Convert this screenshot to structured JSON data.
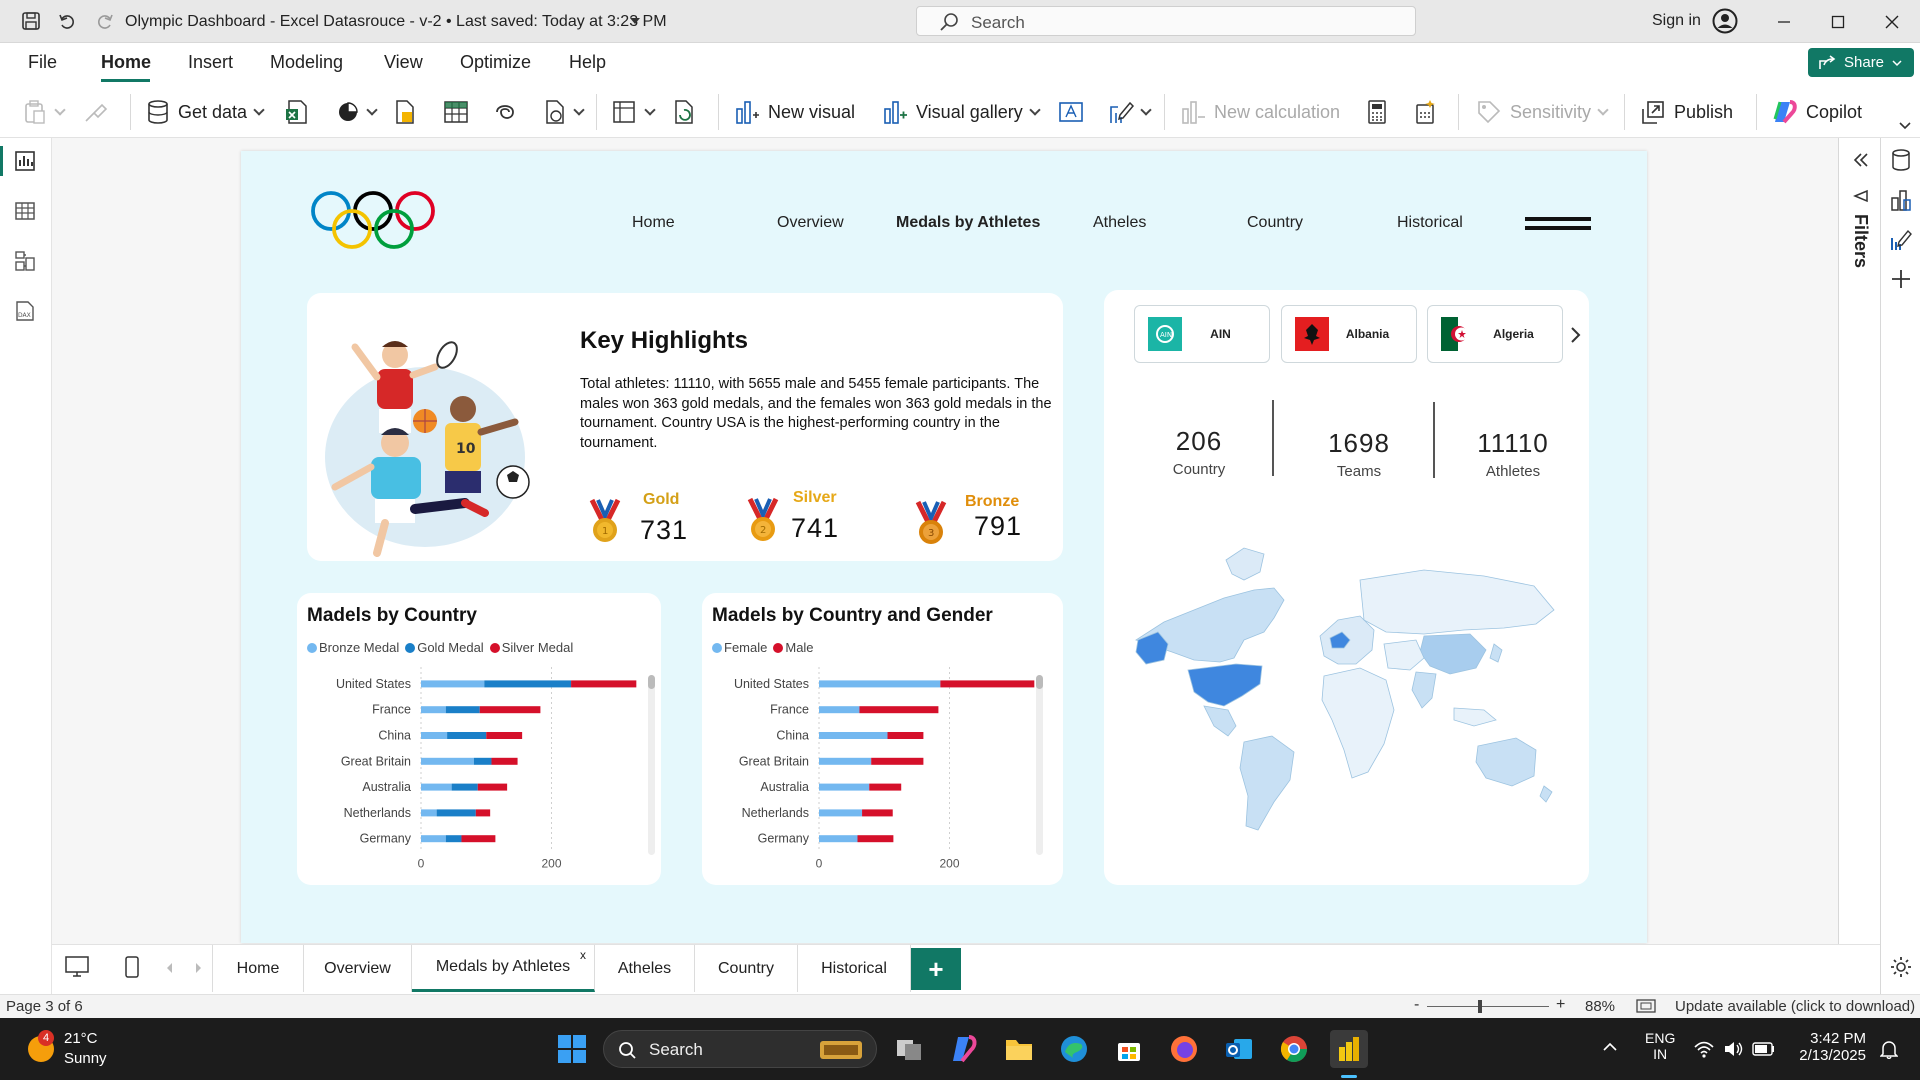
{
  "app": {
    "title": "Olympic Dashboard - Excel Datasrouce - v-2  •  Last saved: Today at 3:23 PM",
    "search_placeholder": "Search",
    "sign_in": "Sign in"
  },
  "ribbon_tabs": [
    "File",
    "Home",
    "Insert",
    "Modeling",
    "View",
    "Optimize",
    "Help"
  ],
  "share_label": "Share",
  "ribbon": {
    "get_data": "Get data",
    "new_visual": "New visual",
    "visual_gallery": "Visual gallery",
    "new_calculation": "New calculation",
    "sensitivity": "Sensitivity",
    "publish": "Publish",
    "copilot": "Copilot"
  },
  "filters_label": "Filters",
  "report": {
    "nav": [
      "Home",
      "Overview",
      "Medals by Athletes",
      "Atheles",
      "Country",
      "Historical"
    ],
    "active_nav": "Medals by Athletes",
    "highlights": {
      "title": "Key Highlights",
      "text": "Total athletes: 11110, with 5655 male and 5455 female participants. The males won 363 gold medals, and the females won 363 gold medals in the tournament. Country USA is the highest-performing country in the tournament.",
      "medals": [
        {
          "label": "Gold",
          "value": "731",
          "color": "#d4a017"
        },
        {
          "label": "Silver",
          "value": "741",
          "color": "#e6a817"
        },
        {
          "label": "Bronze",
          "value": "791",
          "color": "#e08e0b"
        }
      ]
    },
    "country_slicer": [
      "AIN",
      "Albania",
      "Algeria"
    ],
    "stats": [
      {
        "value": "206",
        "label": "Country"
      },
      {
        "value": "1698",
        "label": "Teams"
      },
      {
        "value": "11110",
        "label": "Athletes"
      }
    ]
  },
  "chart_data": [
    {
      "type": "bar",
      "orientation": "horizontal",
      "stacked": true,
      "title": "Madels by Country",
      "categories": [
        "United States",
        "France",
        "China",
        "Great Britain",
        "Australia",
        "Netherlands",
        "Germany"
      ],
      "series": [
        {
          "name": "Bronze Medal",
          "color": "#73b8f0",
          "values": [
            97,
            38,
            40,
            81,
            47,
            24,
            38
          ]
        },
        {
          "name": "Gold Medal",
          "color": "#1a7fc8",
          "values": [
            133,
            52,
            60,
            27,
            40,
            60,
            24
          ]
        },
        {
          "name": "Silver Medal",
          "color": "#d5102a",
          "values": [
            100,
            93,
            55,
            40,
            45,
            22,
            52
          ]
        }
      ],
      "xlim": [
        0,
        400
      ],
      "xticks": [
        0,
        200,
        400
      ]
    },
    {
      "type": "bar",
      "orientation": "horizontal",
      "stacked": true,
      "title": "Madels by Country and Gender",
      "categories": [
        "United States",
        "France",
        "China",
        "Great Britain",
        "Australia",
        "Netherlands",
        "Germany"
      ],
      "series": [
        {
          "name": "Female",
          "color": "#73b8f0",
          "values": [
            186,
            62,
            105,
            80,
            77,
            66,
            59
          ]
        },
        {
          "name": "Male",
          "color": "#d5102a",
          "values": [
            144,
            121,
            55,
            80,
            49,
            47,
            55
          ]
        }
      ],
      "xlim": [
        0,
        400
      ],
      "xticks": [
        0,
        200,
        400
      ]
    }
  ],
  "page_tabs": [
    "Home",
    "Overview",
    "Medals by Athletes",
    "Atheles",
    "Country",
    "Historical"
  ],
  "active_page": "Medals by Athletes",
  "status": {
    "page": "Page 3 of 6",
    "zoom": "88%",
    "update": "Update available (click to download)"
  },
  "taskbar": {
    "weather_temp": "21°C",
    "weather_desc": "Sunny",
    "weather_badge": "4",
    "search": "Search",
    "lang1": "ENG",
    "lang2": "IN",
    "time": "3:42 PM",
    "date": "2/13/2025"
  }
}
